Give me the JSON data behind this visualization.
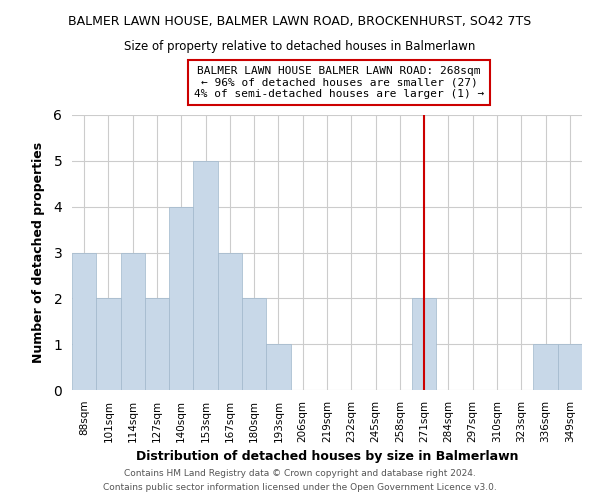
{
  "title": "BALMER LAWN HOUSE, BALMER LAWN ROAD, BROCKENHURST, SO42 7TS",
  "subtitle": "Size of property relative to detached houses in Balmerlawn",
  "xlabel": "Distribution of detached houses by size in Balmerlawn",
  "ylabel": "Number of detached properties",
  "bar_labels": [
    "88sqm",
    "101sqm",
    "114sqm",
    "127sqm",
    "140sqm",
    "153sqm",
    "167sqm",
    "180sqm",
    "193sqm",
    "206sqm",
    "219sqm",
    "232sqm",
    "245sqm",
    "258sqm",
    "271sqm",
    "284sqm",
    "297sqm",
    "310sqm",
    "323sqm",
    "336sqm",
    "349sqm"
  ],
  "bar_values": [
    3,
    2,
    3,
    2,
    4,
    5,
    3,
    2,
    1,
    0,
    0,
    0,
    0,
    0,
    2,
    0,
    0,
    0,
    0,
    1,
    1
  ],
  "bar_color": "#c8d8e8",
  "bar_edge_color": "#a0b8cc",
  "vline_x": 14,
  "vline_color": "#cc0000",
  "annotation_title": "BALMER LAWN HOUSE BALMER LAWN ROAD: 268sqm",
  "annotation_line1": "← 96% of detached houses are smaller (27)",
  "annotation_line2": "4% of semi-detached houses are larger (1) →",
  "annotation_box_color": "#ffffff",
  "annotation_box_edge_color": "#cc0000",
  "ylim": [
    0,
    6
  ],
  "yticks": [
    0,
    1,
    2,
    3,
    4,
    5,
    6
  ],
  "grid_color": "#cccccc",
  "background_color": "#ffffff",
  "footnote1": "Contains HM Land Registry data © Crown copyright and database right 2024.",
  "footnote2": "Contains public sector information licensed under the Open Government Licence v3.0."
}
